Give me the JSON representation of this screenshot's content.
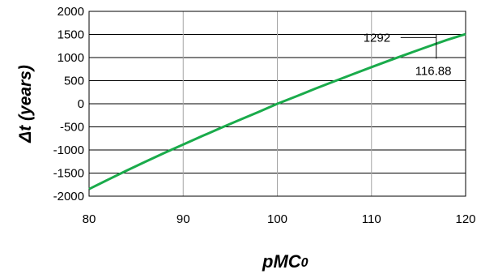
{
  "chart_data": {
    "type": "line",
    "title": "",
    "ylabel_symbol": "Δt",
    "ylabel_unit": " (years)",
    "xlabel_main": "pMC",
    "xlabel_sub": "0",
    "xlim": [
      80,
      120
    ],
    "ylim": [
      -2000,
      2000
    ],
    "x_ticks": [
      "80",
      "90",
      "100",
      "110",
      "120"
    ],
    "y_ticks": [
      "-2000",
      "-1500",
      "-1000",
      "-500",
      "0",
      "500",
      "1000",
      "1500",
      "2000"
    ],
    "grid": true,
    "line_color": "#1aab4b",
    "series": [
      {
        "x": [
          80,
          82,
          84,
          86,
          88,
          90,
          92,
          94,
          96,
          98,
          100,
          102,
          104,
          106,
          108,
          110,
          112,
          114,
          116,
          118,
          120
        ],
        "y": [
          -1845,
          -1643,
          -1446,
          -1253,
          -1064,
          -880,
          -700,
          -523,
          -349,
          -178,
          0,
          160,
          324,
          482,
          638,
          793,
          943,
          1092,
          1236,
          1380,
          1507
        ]
      }
    ],
    "annotations": [
      {
        "text": "1292",
        "x": 116.88,
        "y": 1292
      },
      {
        "text": "116.88",
        "x": 116.88,
        "y": 1292
      }
    ]
  }
}
